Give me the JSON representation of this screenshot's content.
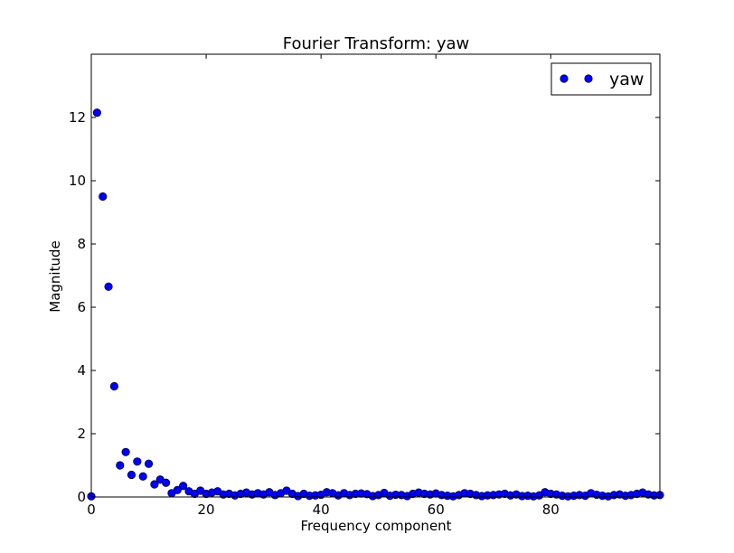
{
  "chart_data": {
    "type": "scatter",
    "title": "Fourier Transform: yaw",
    "xlabel": "Frequency component",
    "ylabel": "Magnitude",
    "xlim": [
      0,
      99
    ],
    "ylim": [
      0,
      14
    ],
    "x_ticks": [
      0,
      20,
      40,
      60,
      80
    ],
    "y_ticks": [
      0,
      2,
      4,
      6,
      8,
      10,
      12
    ],
    "legend": {
      "position": "top-right"
    },
    "marker_color": "#0000ff",
    "marker_edge_color": "#00003f",
    "series": [
      {
        "name": "yaw",
        "x": [
          0,
          1,
          2,
          3,
          4,
          5,
          6,
          7,
          8,
          9,
          10,
          11,
          12,
          13,
          14,
          15,
          16,
          17,
          18,
          19,
          20,
          21,
          22,
          23,
          24,
          25,
          26,
          27,
          28,
          29,
          30,
          31,
          32,
          33,
          34,
          35,
          36,
          37,
          38,
          39,
          40,
          41,
          42,
          43,
          44,
          45,
          46,
          47,
          48,
          49,
          50,
          51,
          52,
          53,
          54,
          55,
          56,
          57,
          58,
          59,
          60,
          61,
          62,
          63,
          64,
          65,
          66,
          67,
          68,
          69,
          70,
          71,
          72,
          73,
          74,
          75,
          76,
          77,
          78,
          79,
          80,
          81,
          82,
          83,
          84,
          85,
          86,
          87,
          88,
          89,
          90,
          91,
          92,
          93,
          94,
          95,
          96,
          97,
          98,
          99
        ],
        "y": [
          0.02,
          12.15,
          9.5,
          6.65,
          3.5,
          1.0,
          1.42,
          0.7,
          1.12,
          0.65,
          1.05,
          0.4,
          0.55,
          0.45,
          0.12,
          0.22,
          0.35,
          0.18,
          0.1,
          0.2,
          0.1,
          0.14,
          0.18,
          0.08,
          0.1,
          0.05,
          0.1,
          0.14,
          0.08,
          0.12,
          0.08,
          0.15,
          0.06,
          0.12,
          0.2,
          0.1,
          0.03,
          0.1,
          0.04,
          0.05,
          0.07,
          0.15,
          0.12,
          0.05,
          0.12,
          0.06,
          0.1,
          0.11,
          0.09,
          0.03,
          0.06,
          0.13,
          0.04,
          0.07,
          0.06,
          0.03,
          0.1,
          0.14,
          0.1,
          0.08,
          0.11,
          0.06,
          0.04,
          0.02,
          0.06,
          0.12,
          0.1,
          0.06,
          0.03,
          0.05,
          0.06,
          0.08,
          0.1,
          0.05,
          0.08,
          0.03,
          0.04,
          0.02,
          0.05,
          0.15,
          0.1,
          0.08,
          0.04,
          0.02,
          0.04,
          0.06,
          0.04,
          0.12,
          0.07,
          0.04,
          0.02,
          0.06,
          0.08,
          0.04,
          0.06,
          0.1,
          0.14,
          0.08,
          0.05,
          0.06
        ]
      }
    ]
  }
}
